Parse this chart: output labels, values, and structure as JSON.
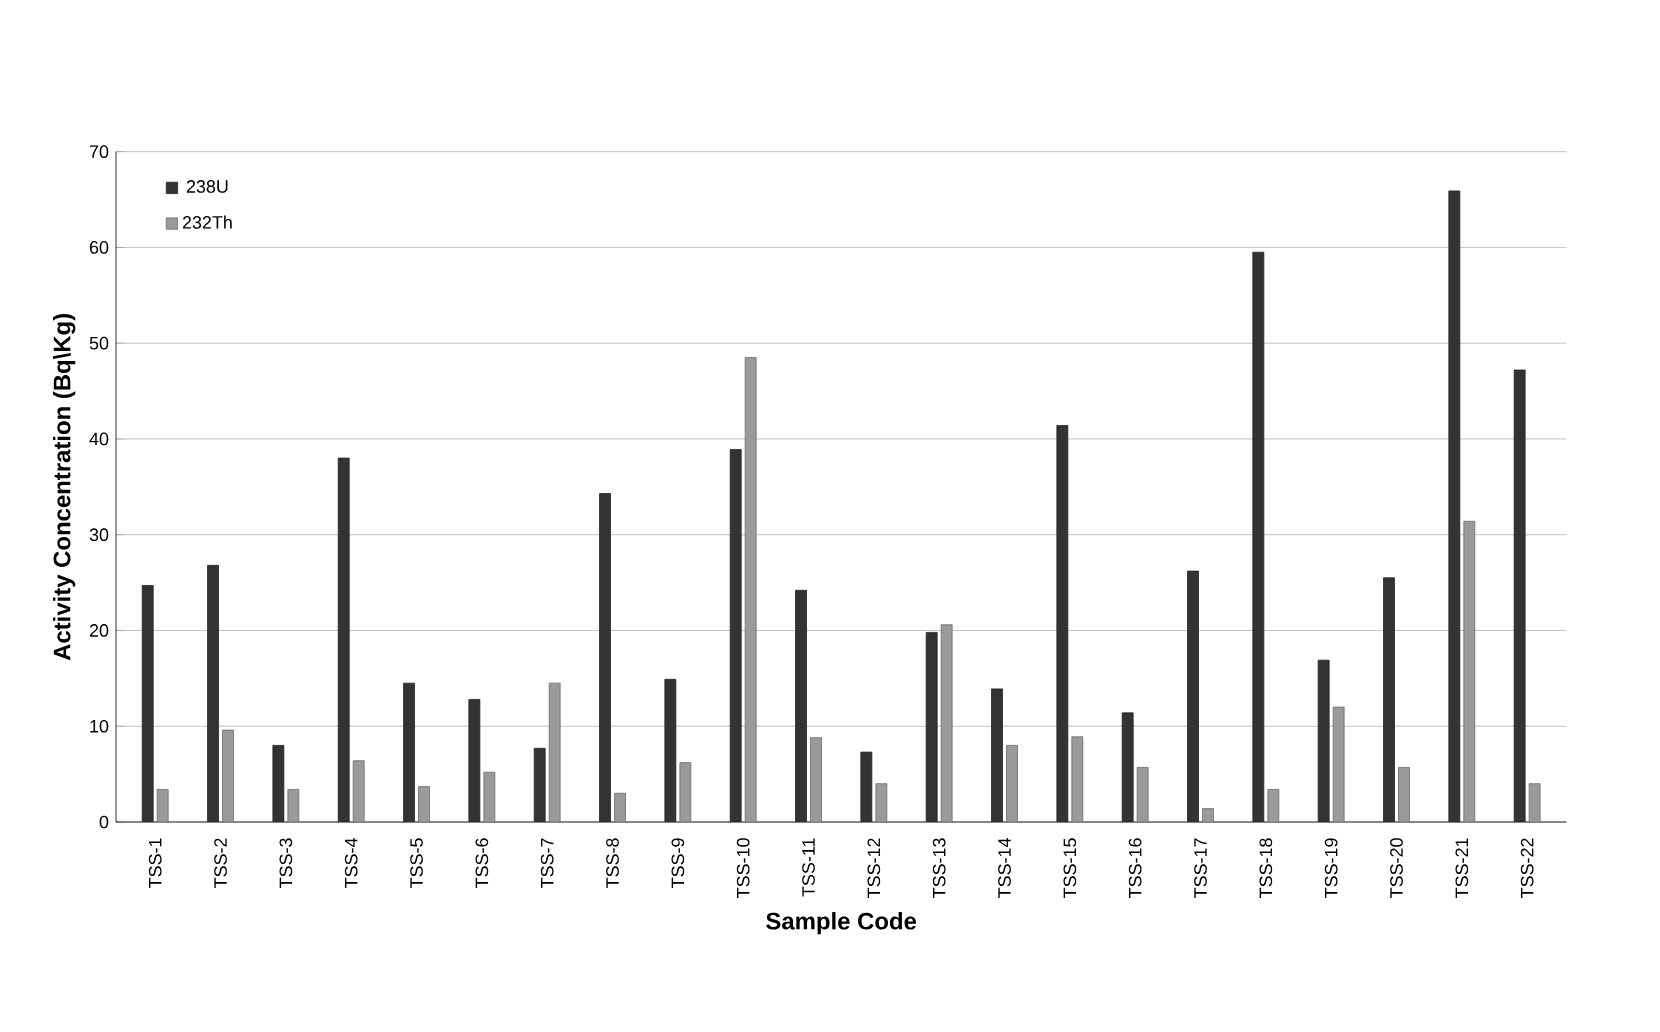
{
  "chart_data": {
    "type": "bar",
    "xlabel": "Sample Code",
    "ylabel": "Activity Concentration (Bq\\Kg)",
    "categories": [
      "TSS-1",
      "TSS-2",
      "TSS-3",
      "TSS-4",
      "TSS-5",
      "TSS-6",
      "TSS-7",
      "TSS-8",
      "TSS-9",
      "TSS-10",
      "TSS-11",
      "TSS-12",
      "TSS-13",
      "TSS-14",
      "TSS-15",
      "TSS-16",
      "TSS-17",
      "TSS-18",
      "TSS-19",
      "TSS-20",
      "TSS-21",
      "TSS-22"
    ],
    "series": [
      {
        "name": "238U",
        "color": "#333333",
        "values": [
          24.7,
          26.8,
          8,
          38,
          14.5,
          12.8,
          7.7,
          34.3,
          14.9,
          38.9,
          24.2,
          7.3,
          19.8,
          13.9,
          41.4,
          11.4,
          26.2,
          59.5,
          16.9,
          25.5,
          65.9,
          47.2
        ]
      },
      {
        "name": "232Th",
        "color": "#9a9a9a",
        "values": [
          3.4,
          9.6,
          3.4,
          6.4,
          3.7,
          5.2,
          14.5,
          3,
          6.2,
          48.5,
          8.8,
          4,
          20.6,
          8,
          8.9,
          5.7,
          1.4,
          3.4,
          12,
          5.7,
          31.4,
          4
        ]
      }
    ],
    "ylim": [
      0,
      70
    ],
    "yticks": [
      0,
      10,
      20,
      30,
      40,
      50,
      60,
      70
    ],
    "grid": "y",
    "legend": "top left"
  }
}
